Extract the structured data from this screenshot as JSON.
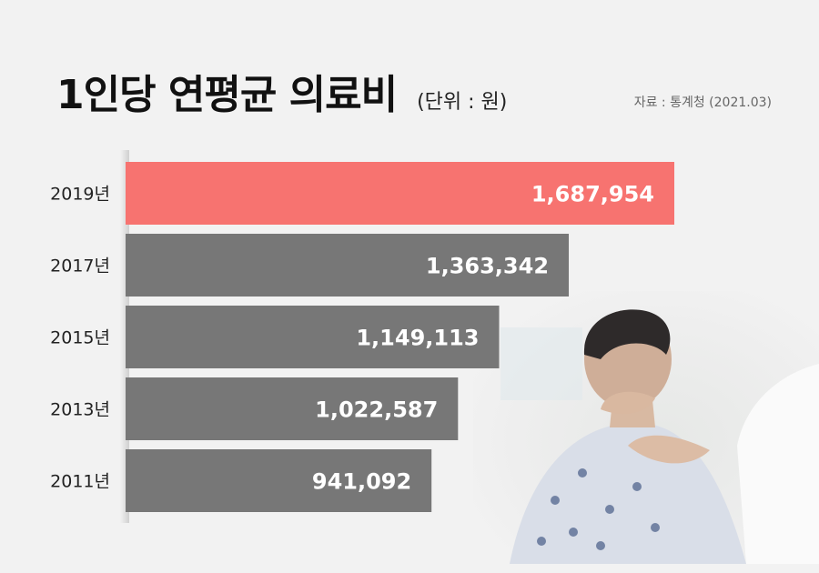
{
  "header": {
    "title": "1인당 연평균 의료비",
    "unit": "(단위 : 원)",
    "source": "자료 : 통계청 (2021.03)"
  },
  "colors": {
    "highlight": "#f77370",
    "bar": "#777777",
    "background": "#f2f2f2"
  },
  "chart_data": {
    "type": "bar",
    "orientation": "horizontal",
    "title": "1인당 연평균 의료비",
    "unit": "(단위 : 원)",
    "categories": [
      "2019년",
      "2017년",
      "2015년",
      "2013년",
      "2011년"
    ],
    "values": [
      1687954,
      1363342,
      1149113,
      1022587,
      941092
    ],
    "value_labels": [
      "1,687,954",
      "1,363,342",
      "1,149,113",
      "1,022,587",
      "941,092"
    ],
    "highlight_index": 0,
    "xlim": [
      0,
      1687954
    ],
    "grid": false,
    "legend": "none"
  },
  "illustration": {
    "icon": "patient-neck-pain-photo"
  }
}
